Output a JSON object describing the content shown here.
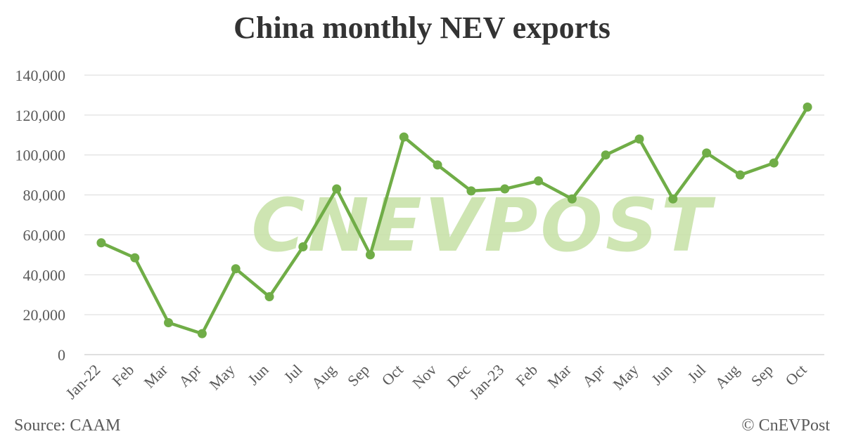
{
  "chart_data": {
    "type": "line",
    "title": "China monthly NEV exports",
    "xlabel": "",
    "ylabel": "",
    "categories": [
      "Jan-22",
      "Feb",
      "Mar",
      "Apr",
      "May",
      "Jun",
      "Jul",
      "Aug",
      "Sep",
      "Oct",
      "Nov",
      "Dec",
      "Jan-23",
      "Feb",
      "Mar",
      "Apr",
      "May",
      "Jun",
      "Jul",
      "Aug",
      "Sep",
      "Oct"
    ],
    "values": [
      56000,
      48500,
      16000,
      10500,
      43000,
      29000,
      54000,
      83000,
      50000,
      109000,
      95000,
      82000,
      83000,
      87000,
      78000,
      100000,
      108000,
      78000,
      101000,
      90000,
      96000,
      124000
    ],
    "ylim": [
      0,
      140000
    ],
    "yticks": [
      "0",
      "20,000",
      "40,000",
      "60,000",
      "80,000",
      "100,000",
      "120,000",
      "140,000"
    ],
    "grid": true,
    "line_color": "#70ad47",
    "watermark": "CNEVPOST",
    "watermark_color": "#c5e0a5"
  },
  "footer": {
    "source": "Source: CAAM",
    "copyright": "© CnEVPost"
  }
}
